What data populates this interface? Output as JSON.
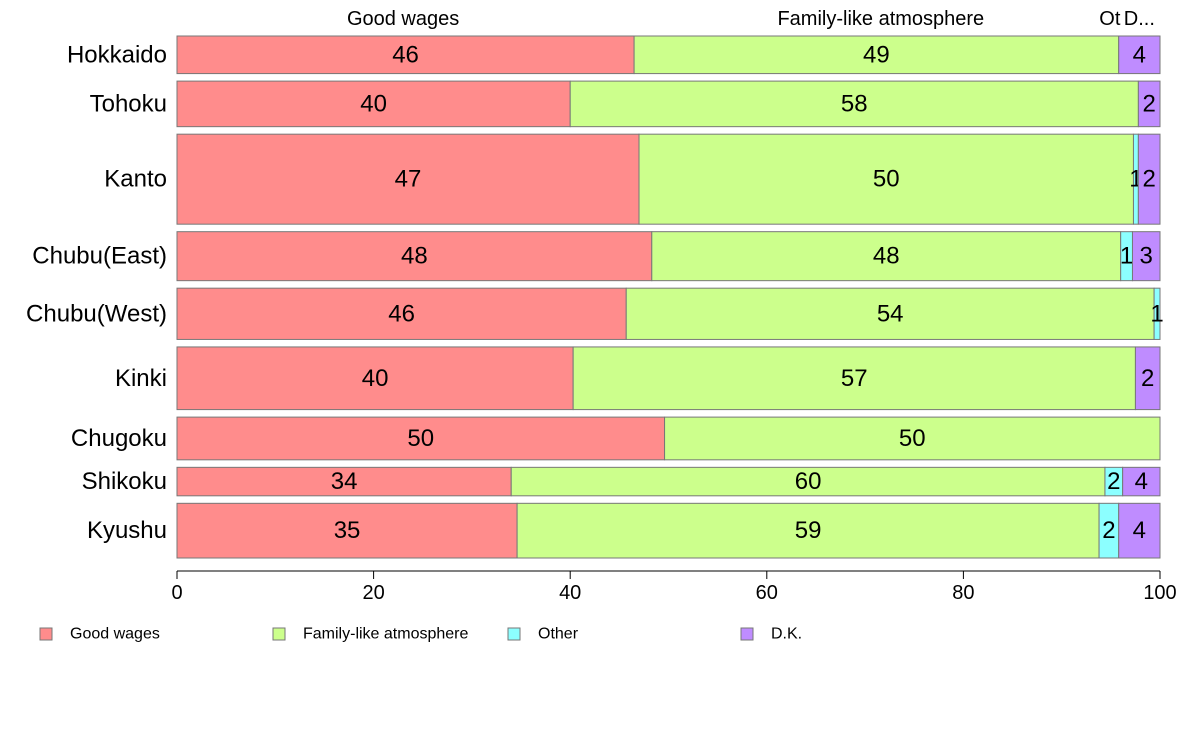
{
  "chart_data": {
    "type": "bar",
    "orientation": "horizontal",
    "stacked": "percent",
    "categories": [
      "Hokkaido",
      "Tohoku",
      "Kanto",
      "Chubu(East)",
      "Chubu(West)",
      "Kinki",
      "Chugoku",
      "Shikoku",
      "Kyushu"
    ],
    "bar_width_weights": [
      0.66,
      0.8,
      1.58,
      0.86,
      0.9,
      1.1,
      0.75,
      0.5,
      0.96
    ],
    "series": [
      {
        "name": "Good wages",
        "color": "#ff8c8c",
        "values": [
          46.5,
          40.0,
          47.0,
          48.3,
          45.7,
          40.3,
          49.6,
          34.0,
          34.6
        ],
        "labels": [
          "46",
          "40",
          "47",
          "48",
          "46",
          "40",
          "50",
          "34",
          "35"
        ]
      },
      {
        "name": "Family-like atmosphere",
        "color": "#ccff8c",
        "values": [
          49.3,
          57.8,
          50.3,
          47.7,
          53.7,
          57.2,
          50.4,
          60.4,
          59.2
        ],
        "labels": [
          "49",
          "58",
          "50",
          "48",
          "54",
          "57",
          "50",
          "60",
          "59"
        ]
      },
      {
        "name": "Other",
        "color": "#8cffff",
        "values": [
          0,
          0,
          0.5,
          1.2,
          0.6,
          0,
          0,
          1.8,
          2.0
        ],
        "labels": [
          "",
          "",
          "1",
          "1",
          "1",
          "",
          "",
          "2",
          "2"
        ]
      },
      {
        "name": "D.K.",
        "color": "#bf8cff",
        "values": [
          4.2,
          2.2,
          2.2,
          2.8,
          0,
          2.5,
          0,
          3.8,
          4.2
        ],
        "labels": [
          "4",
          "2",
          "2",
          "3",
          "",
          "2",
          "",
          "4",
          "4"
        ]
      }
    ],
    "top_labels": [
      {
        "text": "Good wages",
        "x": 23
      },
      {
        "text": "Family-like atmosphere",
        "x": 71.6
      },
      {
        "text": "Ot",
        "x": 94.9
      },
      {
        "text": "D...",
        "x": 97.9
      }
    ],
    "x_ticks": [
      0,
      20,
      40,
      60,
      80,
      100
    ],
    "xlim": [
      0,
      100
    ],
    "xlabel": "",
    "ylabel": "",
    "title": "",
    "grid": false,
    "legend": [
      "Good wages",
      "Family-like atmosphere",
      "Other",
      "D.K."
    ],
    "legend_position": "bottom-left"
  }
}
